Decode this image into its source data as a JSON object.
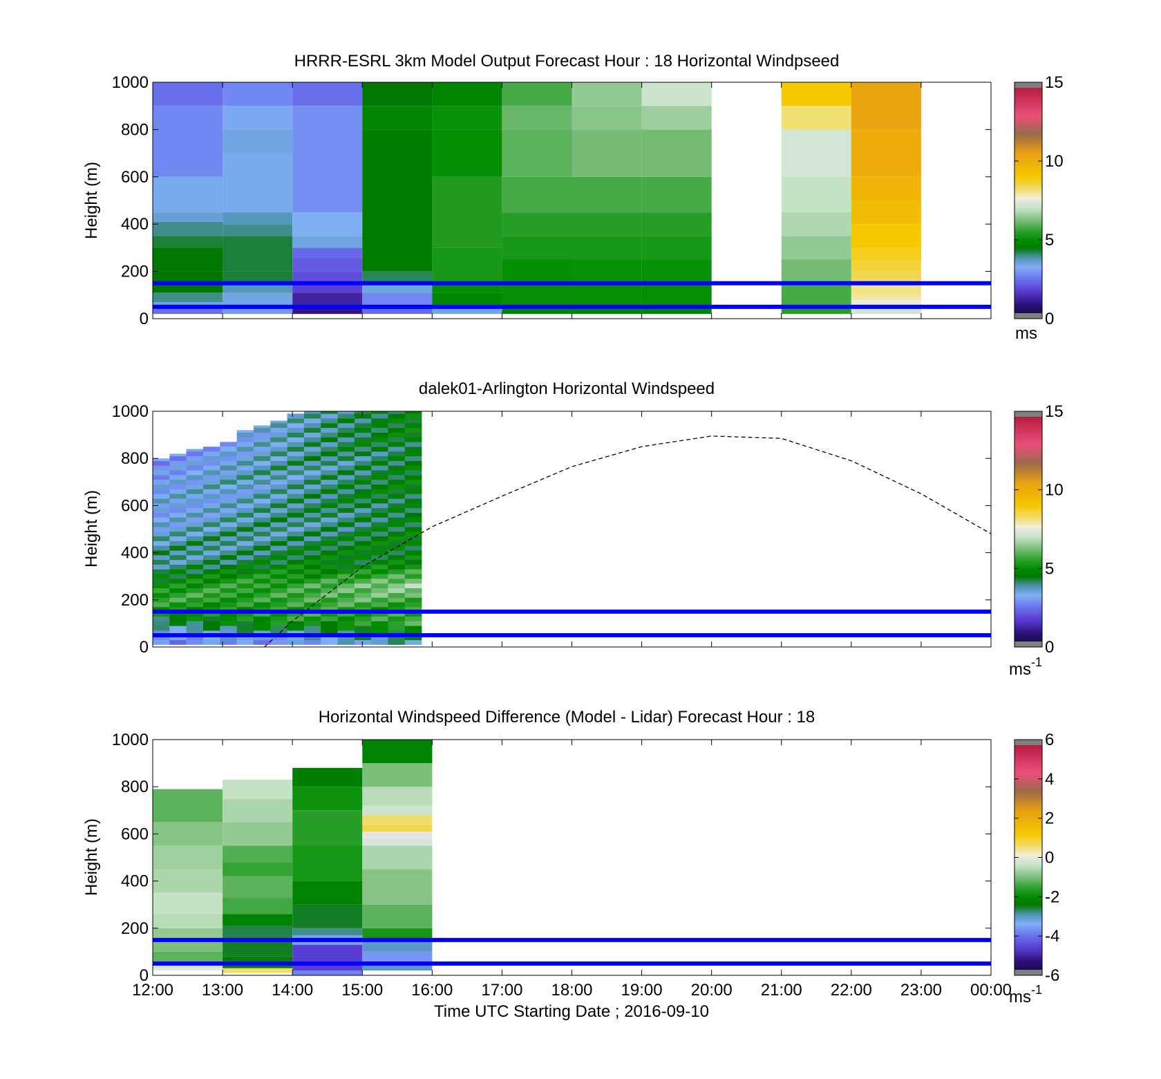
{
  "figure": {
    "xlabel": "Time UTC  Starting Date ; 2016-09-10",
    "x_ticks": [
      "12:00",
      "13:00",
      "14:00",
      "15:00",
      "16:00",
      "17:00",
      "18:00",
      "19:00",
      "20:00",
      "21:00",
      "22:00",
      "23:00",
      "00:00"
    ]
  },
  "chart_data": [
    {
      "type": "heatmap",
      "title": "HRRR-ESRL 3km Model Output   Forecast Hour : 18 Horizontal Windpseed",
      "ylabel": "Height (m)",
      "xlim_hours": [
        12,
        24
      ],
      "ylim": [
        0,
        1000
      ],
      "y_ticks": [
        0,
        200,
        400,
        600,
        800,
        1000
      ],
      "colorbar": {
        "range": [
          0,
          15
        ],
        "ticks": [
          0,
          5,
          10,
          15
        ],
        "label": "ms",
        "label_sup": ""
      },
      "reference_lines_m": [
        50,
        150
      ],
      "data_ceiling_m": 1000,
      "columns": [
        {
          "hour": 12,
          "segments": [
            [
              20,
              45,
              2.5
            ],
            [
              45,
              70,
              3.5
            ],
            [
              70,
              110,
              4
            ],
            [
              110,
              150,
              4.5
            ],
            [
              150,
              200,
              4.5
            ],
            [
              200,
              300,
              4.5
            ],
            [
              300,
              350,
              4.3
            ],
            [
              350,
              410,
              4
            ],
            [
              410,
              450,
              3.6
            ],
            [
              450,
              600,
              3.4
            ],
            [
              600,
              900,
              2.8
            ],
            [
              900,
              1000,
              2.5
            ]
          ]
        },
        {
          "hour": 13,
          "segments": [
            [
              20,
              45,
              3
            ],
            [
              45,
              110,
              3.5
            ],
            [
              110,
              150,
              3.8
            ],
            [
              150,
              200,
              4.3
            ],
            [
              200,
              350,
              4.3
            ],
            [
              350,
              400,
              4
            ],
            [
              400,
              450,
              3.8
            ],
            [
              450,
              700,
              3.4
            ],
            [
              700,
              800,
              3.5
            ],
            [
              800,
              900,
              3.2
            ],
            [
              900,
              1000,
              2.8
            ]
          ]
        },
        {
          "hour": 14,
          "segments": [
            [
              20,
              45,
              1
            ],
            [
              45,
              110,
              1.3
            ],
            [
              110,
              150,
              1.8
            ],
            [
              150,
              200,
              2
            ],
            [
              200,
              260,
              2.2
            ],
            [
              260,
              300,
              2.4
            ],
            [
              300,
              350,
              3.5
            ],
            [
              350,
              450,
              3.3
            ],
            [
              450,
              900,
              2.9
            ],
            [
              900,
              1000,
              2.5
            ]
          ]
        },
        {
          "hour": 15,
          "segments": [
            [
              20,
              45,
              2.4
            ],
            [
              45,
              110,
              2.8
            ],
            [
              110,
              150,
              3.5
            ],
            [
              150,
              200,
              4.2
            ],
            [
              200,
              800,
              4.6
            ],
            [
              800,
              900,
              4.8
            ],
            [
              900,
              1000,
              4.5
            ]
          ]
        },
        {
          "hour": 16,
          "segments": [
            [
              20,
              45,
              3.5
            ],
            [
              45,
              110,
              4.8
            ],
            [
              110,
              150,
              5
            ],
            [
              150,
              300,
              5.3
            ],
            [
              300,
              600,
              5.4
            ],
            [
              600,
              800,
              5
            ],
            [
              800,
              900,
              5.1
            ],
            [
              900,
              1000,
              4.8
            ]
          ]
        },
        {
          "hour": 17,
          "segments": [
            [
              20,
              45,
              4.8
            ],
            [
              45,
              150,
              5
            ],
            [
              150,
              250,
              5
            ],
            [
              250,
              350,
              5.3
            ],
            [
              350,
              450,
              5.5
            ],
            [
              450,
              600,
              5.8
            ],
            [
              600,
              800,
              6
            ],
            [
              800,
              900,
              6.1
            ],
            [
              900,
              1000,
              5.8
            ]
          ]
        },
        {
          "hour": 18,
          "segments": [
            [
              20,
              45,
              4.8
            ],
            [
              45,
              150,
              5
            ],
            [
              150,
              250,
              5.1
            ],
            [
              250,
              350,
              5.3
            ],
            [
              350,
              450,
              5.5
            ],
            [
              450,
              600,
              5.8
            ],
            [
              600,
              800,
              6.2
            ],
            [
              800,
              900,
              6.4
            ],
            [
              900,
              1000,
              6.5
            ]
          ]
        },
        {
          "hour": 19,
          "segments": [
            [
              20,
              45,
              4.8
            ],
            [
              45,
              150,
              5
            ],
            [
              150,
              250,
              5.1
            ],
            [
              250,
              350,
              5.3
            ],
            [
              350,
              450,
              5.5
            ],
            [
              450,
              600,
              5.8
            ],
            [
              600,
              800,
              6.2
            ],
            [
              800,
              900,
              6.6
            ],
            [
              900,
              1000,
              7.1
            ]
          ]
        },
        {
          "hour": 21,
          "segments": [
            [
              20,
              45,
              5.5
            ],
            [
              45,
              150,
              5.8
            ],
            [
              150,
              250,
              6.2
            ],
            [
              250,
              350,
              6.5
            ],
            [
              350,
              450,
              6.8
            ],
            [
              450,
              600,
              7
            ],
            [
              600,
              800,
              7.2
            ],
            [
              800,
              900,
              8.2
            ],
            [
              900,
              1000,
              9
            ]
          ]
        },
        {
          "hour": 22,
          "segments": [
            [
              20,
              45,
              7.2
            ],
            [
              45,
              80,
              7.6
            ],
            [
              80,
              100,
              7.9
            ],
            [
              100,
              150,
              8.1
            ],
            [
              150,
              200,
              8.4
            ],
            [
              200,
              250,
              8.6
            ],
            [
              250,
              300,
              8.8
            ],
            [
              300,
              400,
              9
            ],
            [
              400,
              500,
              9.4
            ],
            [
              500,
              600,
              9.7
            ],
            [
              600,
              800,
              10
            ],
            [
              800,
              1000,
              10.3
            ]
          ]
        }
      ]
    },
    {
      "type": "heatmap",
      "title": "dalek01-Arlington  Horizontal Windspeed",
      "ylabel": "Height (m)",
      "xlim_hours": [
        12,
        24
      ],
      "ylim": [
        0,
        1000
      ],
      "y_ticks": [
        0,
        200,
        400,
        600,
        800,
        1000
      ],
      "colorbar": {
        "range": [
          0,
          15
        ],
        "ticks": [
          0,
          5,
          10,
          15
        ],
        "label": "ms",
        "label_sup": "-1"
      },
      "reference_lines_m": [
        50,
        150
      ],
      "data_end_hour": 15.85,
      "tops_m": [
        800,
        820,
        840,
        850,
        870,
        920,
        940,
        960,
        990,
        1000,
        1000,
        1000,
        1000,
        1000,
        1000,
        1000
      ],
      "profile": {
        "hour_knots": [
          12.0,
          12.6,
          13.3,
          13.6,
          14.0,
          14.5,
          15.0,
          15.5,
          15.85
        ],
        "early_knots": [
          [
            0,
            2.5
          ],
          [
            40,
            3
          ],
          [
            80,
            4
          ],
          [
            130,
            5
          ],
          [
            200,
            5.5
          ],
          [
            350,
            4
          ],
          [
            500,
            3.5
          ],
          [
            650,
            3.2
          ],
          [
            800,
            3
          ]
        ],
        "late_knots": [
          [
            0,
            3.5
          ],
          [
            40,
            4.5
          ],
          [
            100,
            6
          ],
          [
            150,
            5.5
          ],
          [
            250,
            6.5
          ],
          [
            350,
            5
          ],
          [
            500,
            4.5
          ],
          [
            650,
            4.7
          ],
          [
            800,
            4.6
          ],
          [
            1000,
            4.8
          ]
        ]
      },
      "dashed_curve": {
        "hour": [
          13.6,
          14.0,
          15.0,
          16.0,
          17.0,
          18.0,
          19.0,
          20.0,
          21.0,
          22.0,
          23.0,
          24.0
        ],
        "height_m": [
          0,
          110,
          340,
          510,
          640,
          765,
          850,
          895,
          885,
          790,
          650,
          480
        ]
      }
    },
    {
      "type": "heatmap",
      "title": "Horizontal Windspeed Difference (Model - Lidar) Forecast Hour : 18",
      "ylabel": "Height (m)",
      "xlim_hours": [
        12,
        24
      ],
      "ylim": [
        0,
        1000
      ],
      "y_ticks": [
        0,
        200,
        400,
        600,
        800,
        1000
      ],
      "colorbar": {
        "range": [
          -6,
          6
        ],
        "ticks": [
          -6,
          -4,
          -2,
          0,
          2,
          4,
          6
        ],
        "label": "ms",
        "label_sup": "-1"
      },
      "reference_lines_m": [
        50,
        150
      ],
      "columns": [
        {
          "hour": 12,
          "top": 790,
          "segments": [
            [
              20,
              30,
              0
            ],
            [
              30,
              50,
              -0.3
            ],
            [
              50,
              100,
              -1.2
            ],
            [
              100,
              150,
              -1
            ],
            [
              150,
              200,
              -0.8
            ],
            [
              200,
              260,
              -0.5
            ],
            [
              260,
              350,
              -0.4
            ],
            [
              350,
              450,
              -0.6
            ],
            [
              450,
              550,
              -0.7
            ],
            [
              550,
              650,
              -0.9
            ],
            [
              650,
              790,
              -1.2
            ]
          ]
        },
        {
          "hour": 13,
          "top": 830,
          "segments": [
            [
              10,
              30,
              0.6
            ],
            [
              30,
              80,
              -2.3
            ],
            [
              80,
              150,
              -2.5
            ],
            [
              150,
              210,
              -2.6
            ],
            [
              210,
              260,
              -2.2
            ],
            [
              260,
              330,
              -1.4
            ],
            [
              330,
              420,
              -1.2
            ],
            [
              420,
              480,
              -1.5
            ],
            [
              480,
              550,
              -1.3
            ],
            [
              550,
              650,
              -0.8
            ],
            [
              650,
              750,
              -0.6
            ],
            [
              750,
              830,
              -0.4
            ]
          ]
        },
        {
          "hour": 14,
          "top": 880,
          "segments": [
            [
              0,
              20,
              -3.8
            ],
            [
              20,
              130,
              -4.6
            ],
            [
              130,
              170,
              -3.5
            ],
            [
              170,
              200,
              -2.8
            ],
            [
              200,
              300,
              -2.5
            ],
            [
              300,
              400,
              -2.2
            ],
            [
              400,
              550,
              -1.8
            ],
            [
              550,
              700,
              -1.6
            ],
            [
              700,
              800,
              -1.9
            ],
            [
              800,
              880,
              -2.3
            ]
          ]
        },
        {
          "hour": 15,
          "top": 1000,
          "segments": [
            [
              20,
              60,
              -3
            ],
            [
              60,
              100,
              -3.6
            ],
            [
              100,
              150,
              -3
            ],
            [
              150,
              200,
              -1.8
            ],
            [
              200,
              300,
              -1.2
            ],
            [
              300,
              450,
              -0.9
            ],
            [
              450,
              550,
              -0.6
            ],
            [
              550,
              580,
              -0.2
            ],
            [
              580,
              610,
              0
            ],
            [
              610,
              640,
              0.8
            ],
            [
              640,
              680,
              0.6
            ],
            [
              680,
              720,
              -0.3
            ],
            [
              720,
              800,
              -0.5
            ],
            [
              800,
              900,
              -1.0
            ],
            [
              900,
              1000,
              -2.2
            ]
          ]
        }
      ]
    }
  ]
}
